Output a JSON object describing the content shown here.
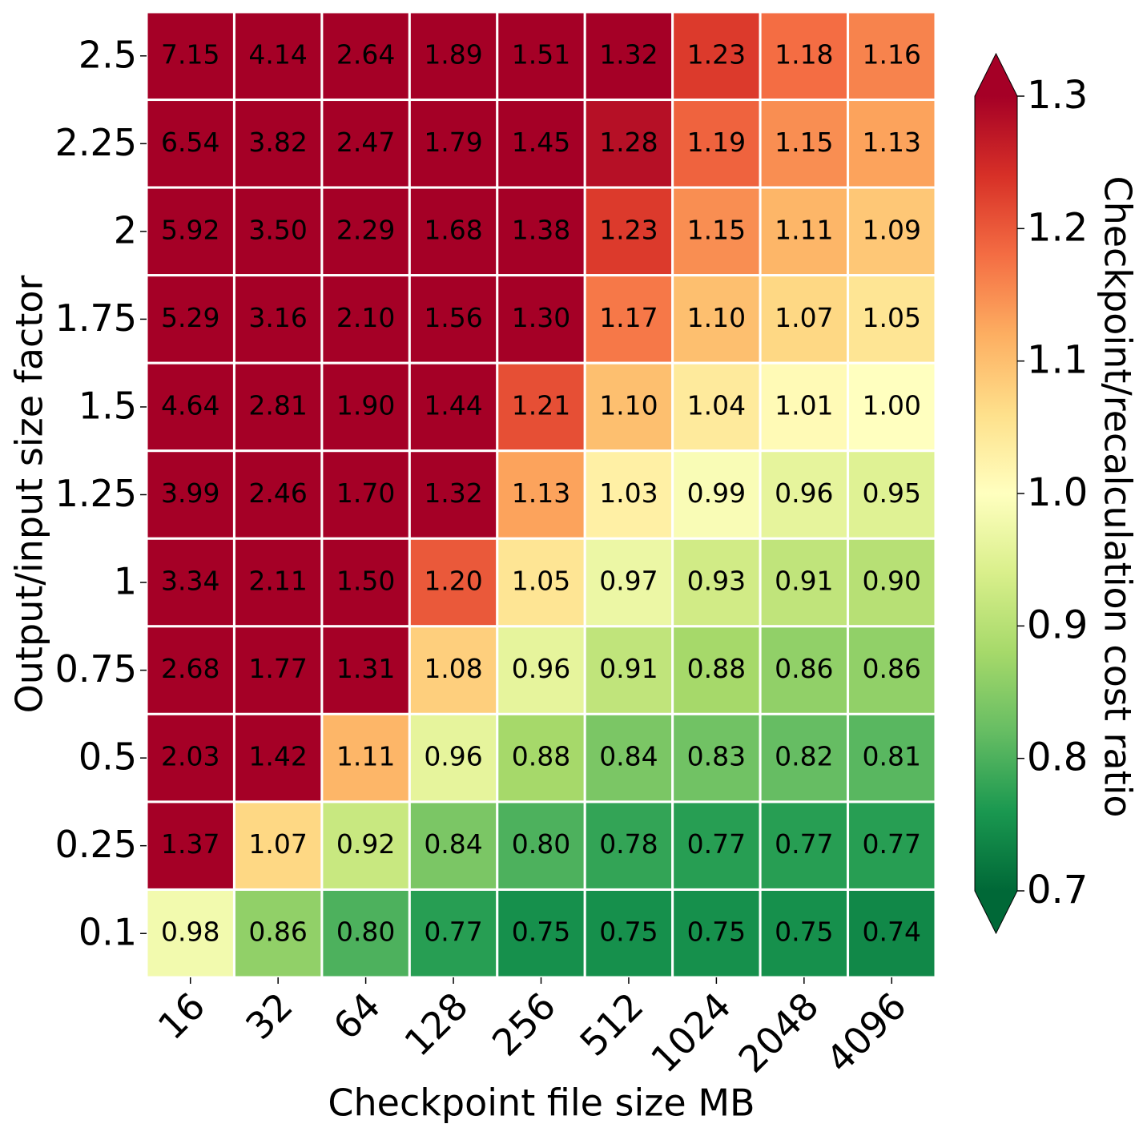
{
  "chart_data": {
    "type": "heatmap",
    "xlabel": "Checkpoint file size MB",
    "ylabel": "Output/input size factor",
    "colorbar_label": "Checkpoint/recalculation cost ratio",
    "x_categories": [
      "16",
      "32",
      "64",
      "128",
      "256",
      "512",
      "1024",
      "2048",
      "4096"
    ],
    "y_categories": [
      "2.5",
      "2.25",
      "2",
      "1.75",
      "1.5",
      "1.25",
      "1",
      "0.75",
      "0.5",
      "0.25",
      "0.1"
    ],
    "values": [
      [
        7.15,
        4.14,
        2.64,
        1.89,
        1.51,
        1.32,
        1.23,
        1.18,
        1.16
      ],
      [
        6.54,
        3.82,
        2.47,
        1.79,
        1.45,
        1.28,
        1.19,
        1.15,
        1.13
      ],
      [
        5.92,
        3.5,
        2.29,
        1.68,
        1.38,
        1.23,
        1.15,
        1.11,
        1.09
      ],
      [
        5.29,
        3.16,
        2.1,
        1.56,
        1.3,
        1.17,
        1.1,
        1.07,
        1.05
      ],
      [
        4.64,
        2.81,
        1.9,
        1.44,
        1.21,
        1.1,
        1.04,
        1.01,
        1.0
      ],
      [
        3.99,
        2.46,
        1.7,
        1.32,
        1.13,
        1.03,
        0.99,
        0.96,
        0.95
      ],
      [
        3.34,
        2.11,
        1.5,
        1.2,
        1.05,
        0.97,
        0.93,
        0.91,
        0.9
      ],
      [
        2.68,
        1.77,
        1.31,
        1.08,
        0.96,
        0.91,
        0.88,
        0.86,
        0.86
      ],
      [
        2.03,
        1.42,
        1.11,
        0.96,
        0.88,
        0.84,
        0.83,
        0.82,
        0.81
      ],
      [
        1.37,
        1.07,
        0.92,
        0.84,
        0.8,
        0.78,
        0.77,
        0.77,
        0.77
      ],
      [
        0.98,
        0.86,
        0.8,
        0.77,
        0.75,
        0.75,
        0.75,
        0.75,
        0.74
      ]
    ],
    "value_labels": [
      [
        "7.15",
        "4.14",
        "2.64",
        "1.89",
        "1.51",
        "1.32",
        "1.23",
        "1.18",
        "1.16"
      ],
      [
        "6.54",
        "3.82",
        "2.47",
        "1.79",
        "1.45",
        "1.28",
        "1.19",
        "1.15",
        "1.13"
      ],
      [
        "5.92",
        "3.50",
        "2.29",
        "1.68",
        "1.38",
        "1.23",
        "1.15",
        "1.11",
        "1.09"
      ],
      [
        "5.29",
        "3.16",
        "2.10",
        "1.56",
        "1.30",
        "1.17",
        "1.10",
        "1.07",
        "1.05"
      ],
      [
        "4.64",
        "2.81",
        "1.90",
        "1.44",
        "1.21",
        "1.10",
        "1.04",
        "1.01",
        "1.00"
      ],
      [
        "3.99",
        "2.46",
        "1.70",
        "1.32",
        "1.13",
        "1.03",
        "0.99",
        "0.96",
        "0.95"
      ],
      [
        "3.34",
        "2.11",
        "1.50",
        "1.20",
        "1.05",
        "0.97",
        "0.93",
        "0.91",
        "0.90"
      ],
      [
        "2.68",
        "1.77",
        "1.31",
        "1.08",
        "0.96",
        "0.91",
        "0.88",
        "0.86",
        "0.86"
      ],
      [
        "2.03",
        "1.42",
        "1.11",
        "0.96",
        "0.88",
        "0.84",
        "0.83",
        "0.82",
        "0.81"
      ],
      [
        "1.37",
        "1.07",
        "0.92",
        "0.84",
        "0.80",
        "0.78",
        "0.77",
        "0.77",
        "0.77"
      ],
      [
        "0.98",
        "0.86",
        "0.80",
        "0.77",
        "0.75",
        "0.75",
        "0.75",
        "0.75",
        "0.74"
      ]
    ],
    "colormap": "RdYlGn_r",
    "clim": [
      0.7,
      1.3
    ],
    "cticks": [
      0.7,
      0.8,
      0.9,
      {
        "value": 1,
        "label": "1.0"
      },
      1.1,
      1.2,
      1.3
    ],
    "extend": "both"
  }
}
